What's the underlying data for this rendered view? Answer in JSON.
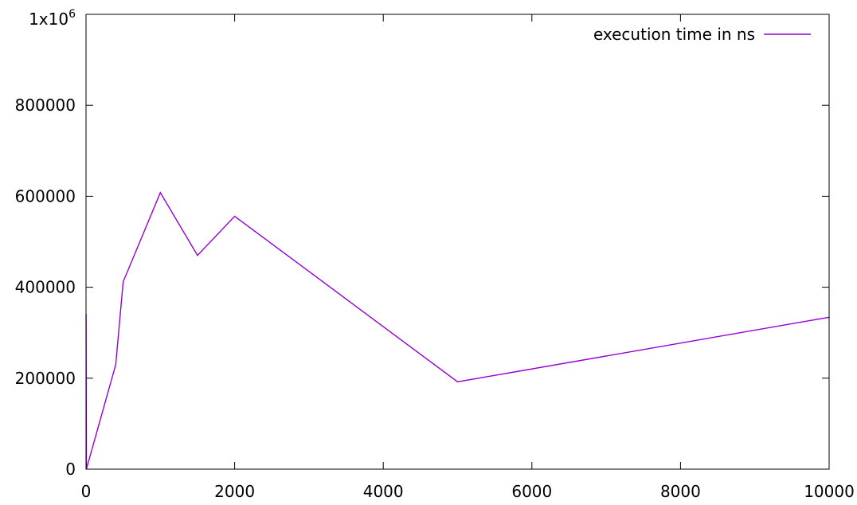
{
  "chart_data": {
    "type": "line",
    "title": "",
    "xlabel": "",
    "ylabel": "",
    "xlim": [
      0,
      10000
    ],
    "ylim": [
      0,
      1000000
    ],
    "grid": false,
    "legend_position": "top-right",
    "x_ticks": [
      {
        "value": 0,
        "label": "0"
      },
      {
        "value": 2000,
        "label": "2000"
      },
      {
        "value": 4000,
        "label": "4000"
      },
      {
        "value": 6000,
        "label": "6000"
      },
      {
        "value": 8000,
        "label": "8000"
      },
      {
        "value": 10000,
        "label": "10000"
      }
    ],
    "y_ticks": [
      {
        "value": 0,
        "label": "0"
      },
      {
        "value": 200000,
        "label": "200000"
      },
      {
        "value": 400000,
        "label": "400000"
      },
      {
        "value": 600000,
        "label": "600000"
      },
      {
        "value": 800000,
        "label": "800000"
      }
    ],
    "y_top_label": {
      "value": 1000000,
      "base": "1x10",
      "exponent": "6"
    },
    "series": [
      {
        "name": "execution time in ns",
        "color": "#9400d3",
        "points": [
          {
            "x": 1,
            "y": 340000
          },
          {
            "x": 5,
            "y": 1000
          },
          {
            "x": 10,
            "y": 3000
          },
          {
            "x": 400,
            "y": 230000
          },
          {
            "x": 500,
            "y": 412000
          },
          {
            "x": 1000,
            "y": 608000
          },
          {
            "x": 1500,
            "y": 470000
          },
          {
            "x": 2000,
            "y": 556000
          },
          {
            "x": 5000,
            "y": 192000
          },
          {
            "x": 10000,
            "y": 334000
          }
        ]
      }
    ]
  }
}
